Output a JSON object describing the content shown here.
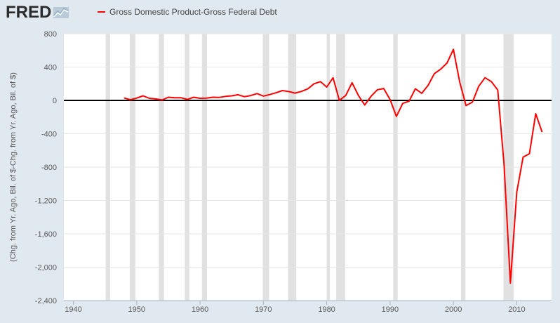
{
  "brand": {
    "logo_text": "FRED",
    "logo_icon": "fred-chart-icon"
  },
  "colors": {
    "background": "#e1e9f0",
    "plot_background": "#ffffff",
    "series_line": "#ff0000",
    "zero_line": "#000000",
    "gridline": "#e6e6e6",
    "recession": "#e1e1e1",
    "text": "#595959"
  },
  "chart_data": {
    "type": "line",
    "title": "",
    "xlabel": "",
    "ylabel": "(Chg. from Yr. Ago, Bil. of $-Chg. from Yr. Ago, Bil. of $)",
    "xlim": [
      1938.5,
      2015.5
    ],
    "ylim": [
      -2400,
      800
    ],
    "x_ticks": [
      1940,
      1950,
      1960,
      1970,
      1980,
      1990,
      2000,
      2010
    ],
    "y_ticks": [
      -2400,
      -2000,
      -1600,
      -1200,
      -800,
      -400,
      0,
      400,
      800
    ],
    "y_tick_labels": [
      "-2,400",
      "-2,000",
      "-1,600",
      "-1,200",
      "-800",
      "-400",
      "0",
      "400",
      "800"
    ],
    "grid": true,
    "legend": "top-left",
    "reference_line": 0,
    "recessions": [
      [
        1945.1,
        1945.8
      ],
      [
        1948.9,
        1949.8
      ],
      [
        1953.5,
        1954.3
      ],
      [
        1957.6,
        1958.3
      ],
      [
        1960.3,
        1961.1
      ],
      [
        1969.9,
        1970.9
      ],
      [
        1973.9,
        1975.2
      ],
      [
        1980.0,
        1980.5
      ],
      [
        1981.5,
        1982.9
      ],
      [
        1990.5,
        1991.2
      ],
      [
        2001.2,
        2001.9
      ],
      [
        2007.9,
        2009.5
      ]
    ],
    "series": [
      {
        "name": "Gross Domestic Product-Gross Federal Debt",
        "x": [
          1948,
          1949,
          1950,
          1951,
          1952,
          1953,
          1954,
          1955,
          1956,
          1957,
          1958,
          1959,
          1960,
          1961,
          1962,
          1963,
          1964,
          1965,
          1966,
          1967,
          1968,
          1969,
          1970,
          1971,
          1972,
          1973,
          1974,
          1975,
          1976,
          1977,
          1978,
          1979,
          1980,
          1981,
          1982,
          1983,
          1984,
          1985,
          1986,
          1987,
          1988,
          1989,
          1990,
          1991,
          1992,
          1993,
          1994,
          1995,
          1996,
          1997,
          1998,
          1999,
          2000,
          2001,
          2002,
          2003,
          2004,
          2005,
          2006,
          2007,
          2008,
          2009,
          2010,
          2011,
          2012,
          2013,
          2014
        ],
        "values": [
          30,
          8,
          28,
          55,
          25,
          18,
          5,
          38,
          32,
          32,
          12,
          38,
          25,
          28,
          38,
          35,
          48,
          55,
          68,
          45,
          58,
          82,
          52,
          70,
          92,
          118,
          106,
          88,
          108,
          138,
          200,
          225,
          160,
          272,
          0,
          60,
          212,
          60,
          -55,
          50,
          128,
          142,
          12,
          -192,
          -35,
          -10,
          140,
          85,
          180,
          322,
          375,
          450,
          612,
          220,
          -62,
          -20,
          170,
          272,
          225,
          125,
          -770,
          -2190,
          -1100,
          -680,
          -640,
          -160,
          -380
        ]
      }
    ]
  }
}
